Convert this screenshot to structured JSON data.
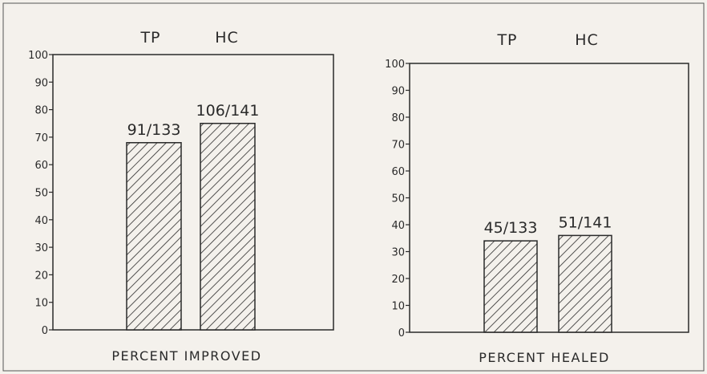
{
  "chart_data": [
    {
      "type": "bar",
      "categories": [
        "TP",
        "HC"
      ],
      "values": [
        68,
        75
      ],
      "data_labels": [
        "91/133",
        "106/141"
      ],
      "xlabel": "PERCENT IMPROVED",
      "ylim": [
        0,
        100
      ],
      "yticks": [
        "0",
        "10",
        "20",
        "30",
        "40",
        "50",
        "60",
        "70",
        "80",
        "90",
        "100"
      ],
      "grid": false,
      "bar_fill": "diagonal-hatch"
    },
    {
      "type": "bar",
      "categories": [
        "TP",
        "HC"
      ],
      "values": [
        34,
        36
      ],
      "data_labels": [
        "45/133",
        "51/141"
      ],
      "xlabel": "PERCENT HEALED",
      "ylim": [
        0,
        100
      ],
      "yticks": [
        "0",
        "10",
        "20",
        "30",
        "40",
        "50",
        "60",
        "70",
        "80",
        "90",
        "100"
      ],
      "grid": false,
      "bar_fill": "diagonal-hatch"
    }
  ],
  "colors": {
    "background": "#f4f1ec",
    "ink": "#2a2a2a"
  }
}
